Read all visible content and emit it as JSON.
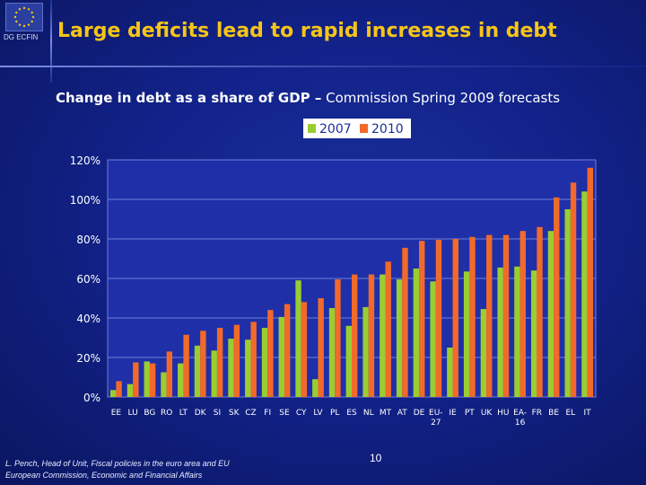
{
  "header": {
    "org_label": "DG ECFIN",
    "title": "Large deficits lead to rapid increases in debt"
  },
  "subtitle": {
    "bold_part": "Change in debt as a share of GDP –",
    "rest": "Commission Spring 2009 forecasts"
  },
  "footer": {
    "author_line1": "L. Pench, Head of Unit, Fiscal policies in the euro area and EU",
    "author_line2": "European Commission, Economic and Financial Affairs",
    "page_number": "10"
  },
  "colors": {
    "series_2007": "#9acd32",
    "series_2010": "#f26a2a",
    "plot_bg": "#1f2fa8",
    "grid": "#6f7fd8",
    "axis_text": "#ffffff"
  },
  "chart_data": {
    "type": "bar",
    "title": "",
    "xlabel": "",
    "ylabel": "",
    "ylim": [
      0,
      120
    ],
    "y_ticks": [
      0,
      20,
      40,
      60,
      80,
      100,
      120
    ],
    "y_tick_labels": [
      "0%",
      "20%",
      "40%",
      "60%",
      "80%",
      "100%",
      "120%"
    ],
    "legend_position": "top-center",
    "categories": [
      "EE",
      "LU",
      "BG",
      "RO",
      "LT",
      "DK",
      "SI",
      "SK",
      "CZ",
      "FI",
      "SE",
      "CY",
      "LV",
      "PL",
      "ES",
      "NL",
      "MT",
      "AT",
      "DE",
      "EU-27",
      "IE",
      "PT",
      "UK",
      "HU",
      "EA-16",
      "FR",
      "BE",
      "EL",
      "IT"
    ],
    "series": [
      {
        "name": "2007",
        "values": [
          3.5,
          6.5,
          18,
          12.5,
          17,
          26,
          23.5,
          29.5,
          29,
          35,
          40.5,
          59,
          9,
          45,
          36,
          45.5,
          62,
          59.5,
          65,
          58.5,
          25,
          63.5,
          44.5,
          65.5,
          66,
          64,
          84,
          95,
          104
        ]
      },
      {
        "name": "2010",
        "values": [
          8,
          17.5,
          17,
          23,
          31.5,
          33.5,
          35,
          36.5,
          38,
          44,
          47,
          48,
          50,
          59.5,
          62,
          62,
          68.5,
          75.5,
          79,
          79.5,
          80,
          81,
          82,
          82,
          84,
          86,
          101,
          108.5,
          116
        ]
      }
    ]
  }
}
